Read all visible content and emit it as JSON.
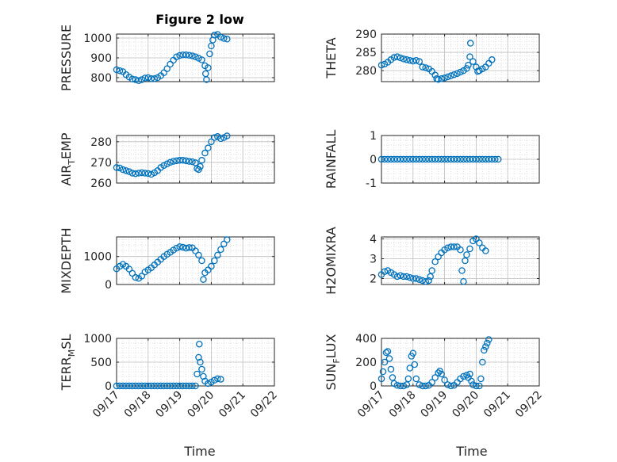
{
  "figure": {
    "title": "Figure 2 low",
    "xlabel": "Time",
    "marker_color": "#0072BD"
  },
  "chart_data": [
    {
      "type": "scatter",
      "ylabel": "PRESSURE",
      "ylim": [
        780,
        1020
      ],
      "yticks": [
        800,
        900,
        1000
      ],
      "xlim": [
        "09/17",
        "09/22"
      ],
      "xticks": [
        "09/17",
        "09/18",
        "09/19",
        "09/20",
        "09/21",
        "09/22"
      ],
      "grid": true,
      "points": [
        [
          0.0,
          840
        ],
        [
          0.1,
          835
        ],
        [
          0.2,
          830
        ],
        [
          0.3,
          815
        ],
        [
          0.4,
          803
        ],
        [
          0.5,
          793
        ],
        [
          0.6,
          790
        ],
        [
          0.7,
          785
        ],
        [
          0.8,
          790
        ],
        [
          0.9,
          798
        ],
        [
          1.0,
          800
        ],
        [
          1.1,
          795
        ],
        [
          1.2,
          795
        ],
        [
          1.3,
          800
        ],
        [
          1.4,
          810
        ],
        [
          1.5,
          825
        ],
        [
          1.6,
          845
        ],
        [
          1.7,
          868
        ],
        [
          1.8,
          888
        ],
        [
          1.9,
          905
        ],
        [
          2.0,
          912
        ],
        [
          2.1,
          915
        ],
        [
          2.2,
          915
        ],
        [
          2.3,
          913
        ],
        [
          2.4,
          910
        ],
        [
          2.5,
          905
        ],
        [
          2.6,
          898
        ],
        [
          2.7,
          890
        ],
        [
          2.8,
          860
        ],
        [
          2.82,
          820
        ],
        [
          2.85,
          790
        ],
        [
          2.9,
          850
        ],
        [
          2.95,
          920
        ],
        [
          3.0,
          960
        ],
        [
          3.05,
          990
        ],
        [
          3.1,
          1015
        ],
        [
          3.2,
          1018
        ],
        [
          3.3,
          1005
        ],
        [
          3.4,
          998
        ],
        [
          3.5,
          995
        ]
      ]
    },
    {
      "type": "scatter",
      "ylabel": "THETA",
      "ylim": [
        277,
        290
      ],
      "yticks": [
        280,
        285,
        290
      ],
      "xlim": [
        "09/17",
        "09/22"
      ],
      "xticks": [
        "09/17",
        "09/18",
        "09/19",
        "09/20",
        "09/21",
        "09/22"
      ],
      "grid": true,
      "points": [
        [
          0.0,
          281.5
        ],
        [
          0.1,
          281.8
        ],
        [
          0.2,
          282.3
        ],
        [
          0.3,
          283.0
        ],
        [
          0.4,
          283.6
        ],
        [
          0.5,
          283.8
        ],
        [
          0.6,
          283.5
        ],
        [
          0.7,
          283.2
        ],
        [
          0.8,
          283.0
        ],
        [
          0.9,
          282.8
        ],
        [
          1.0,
          282.6
        ],
        [
          1.1,
          282.8
        ],
        [
          1.2,
          282.5
        ],
        [
          1.3,
          281.0
        ],
        [
          1.4,
          280.8
        ],
        [
          1.5,
          280.5
        ],
        [
          1.6,
          279.8
        ],
        [
          1.7,
          278.8
        ],
        [
          1.75,
          277.8
        ],
        [
          1.8,
          277.6
        ],
        [
          1.9,
          277.8
        ],
        [
          2.0,
          278.0
        ],
        [
          2.1,
          278.3
        ],
        [
          2.2,
          278.6
        ],
        [
          2.3,
          278.9
        ],
        [
          2.4,
          279.2
        ],
        [
          2.5,
          279.6
        ],
        [
          2.6,
          280.0
        ],
        [
          2.7,
          280.6
        ],
        [
          2.75,
          281.5
        ],
        [
          2.8,
          283.8
        ],
        [
          2.82,
          287.5
        ],
        [
          2.9,
          282.5
        ],
        [
          3.0,
          281.0
        ],
        [
          3.05,
          279.8
        ],
        [
          3.1,
          280.0
        ],
        [
          3.2,
          280.5
        ],
        [
          3.3,
          281.0
        ],
        [
          3.4,
          282.0
        ],
        [
          3.5,
          283.0
        ]
      ]
    },
    {
      "type": "scatter",
      "ylabel": "AIR_TEMP",
      "ylim": [
        260,
        283
      ],
      "yticks": [
        260,
        270,
        280
      ],
      "xlim": [
        "09/17",
        "09/22"
      ],
      "xticks": [
        "09/17",
        "09/18",
        "09/19",
        "09/20",
        "09/21",
        "09/22"
      ],
      "grid": true,
      "points": [
        [
          0.0,
          267.5
        ],
        [
          0.1,
          267.3
        ],
        [
          0.2,
          266.5
        ],
        [
          0.3,
          266.0
        ],
        [
          0.4,
          265.5
        ],
        [
          0.5,
          264.8
        ],
        [
          0.6,
          264.5
        ],
        [
          0.7,
          264.8
        ],
        [
          0.8,
          265.0
        ],
        [
          0.9,
          264.8
        ],
        [
          1.0,
          264.6
        ],
        [
          1.1,
          264.2
        ],
        [
          1.2,
          265.0
        ],
        [
          1.3,
          266.0
        ],
        [
          1.4,
          267.5
        ],
        [
          1.5,
          268.5
        ],
        [
          1.6,
          269.3
        ],
        [
          1.7,
          270.0
        ],
        [
          1.8,
          270.5
        ],
        [
          1.9,
          270.8
        ],
        [
          2.0,
          271.0
        ],
        [
          2.1,
          271.0
        ],
        [
          2.2,
          270.8
        ],
        [
          2.3,
          270.5
        ],
        [
          2.4,
          270.3
        ],
        [
          2.5,
          269.8
        ],
        [
          2.55,
          267.0
        ],
        [
          2.6,
          266.5
        ],
        [
          2.65,
          268.0
        ],
        [
          2.7,
          271.0
        ],
        [
          2.8,
          274.5
        ],
        [
          2.9,
          277.0
        ],
        [
          3.0,
          280.0
        ],
        [
          3.1,
          282.0
        ],
        [
          3.2,
          282.5
        ],
        [
          3.3,
          281.5
        ],
        [
          3.4,
          282.0
        ],
        [
          3.5,
          282.8
        ]
      ]
    },
    {
      "type": "scatter",
      "ylabel": "RAINFALL",
      "ylim": [
        -1,
        1
      ],
      "yticks": [
        -1,
        0,
        1
      ],
      "xlim": [
        "09/17",
        "09/22"
      ],
      "xticks": [
        "09/17",
        "09/18",
        "09/19",
        "09/20",
        "09/21",
        "09/22"
      ],
      "grid": true,
      "points": [
        [
          0.0,
          0
        ],
        [
          0.1,
          0
        ],
        [
          0.2,
          0
        ],
        [
          0.3,
          0
        ],
        [
          0.4,
          0
        ],
        [
          0.5,
          0
        ],
        [
          0.6,
          0
        ],
        [
          0.7,
          0
        ],
        [
          0.8,
          0
        ],
        [
          0.9,
          0
        ],
        [
          1.0,
          0
        ],
        [
          1.1,
          0
        ],
        [
          1.2,
          0
        ],
        [
          1.3,
          0
        ],
        [
          1.4,
          0
        ],
        [
          1.5,
          0
        ],
        [
          1.6,
          0
        ],
        [
          1.7,
          0
        ],
        [
          1.8,
          0
        ],
        [
          1.9,
          0
        ],
        [
          2.0,
          0
        ],
        [
          2.1,
          0
        ],
        [
          2.2,
          0
        ],
        [
          2.3,
          0
        ],
        [
          2.4,
          0
        ],
        [
          2.5,
          0
        ],
        [
          2.6,
          0
        ],
        [
          2.7,
          0
        ],
        [
          2.8,
          0
        ],
        [
          2.9,
          0
        ],
        [
          3.0,
          0
        ],
        [
          3.1,
          0
        ],
        [
          3.2,
          0
        ],
        [
          3.3,
          0
        ],
        [
          3.4,
          0
        ],
        [
          3.5,
          0
        ],
        [
          3.6,
          0
        ],
        [
          3.7,
          0
        ]
      ]
    },
    {
      "type": "scatter",
      "ylabel": "MIXDEPTH",
      "ylim": [
        0,
        1700
      ],
      "yticks": [
        0,
        1000
      ],
      "xlim": [
        "09/17",
        "09/22"
      ],
      "xticks": [
        "09/17",
        "09/18",
        "09/19",
        "09/20",
        "09/21",
        "09/22"
      ],
      "grid": true,
      "points": [
        [
          0.0,
          560
        ],
        [
          0.1,
          650
        ],
        [
          0.2,
          720
        ],
        [
          0.3,
          650
        ],
        [
          0.4,
          550
        ],
        [
          0.5,
          400
        ],
        [
          0.6,
          250
        ],
        [
          0.7,
          220
        ],
        [
          0.8,
          300
        ],
        [
          0.9,
          450
        ],
        [
          1.0,
          520
        ],
        [
          1.1,
          600
        ],
        [
          1.2,
          700
        ],
        [
          1.3,
          800
        ],
        [
          1.4,
          900
        ],
        [
          1.5,
          1000
        ],
        [
          1.6,
          1080
        ],
        [
          1.7,
          1150
        ],
        [
          1.8,
          1230
        ],
        [
          1.9,
          1300
        ],
        [
          2.0,
          1350
        ],
        [
          2.1,
          1330
        ],
        [
          2.2,
          1300
        ],
        [
          2.3,
          1320
        ],
        [
          2.4,
          1310
        ],
        [
          2.5,
          1200
        ],
        [
          2.6,
          1050
        ],
        [
          2.7,
          850
        ],
        [
          2.75,
          180
        ],
        [
          2.8,
          420
        ],
        [
          2.9,
          520
        ],
        [
          3.0,
          650
        ],
        [
          3.1,
          850
        ],
        [
          3.2,
          1050
        ],
        [
          3.3,
          1250
        ],
        [
          3.4,
          1450
        ],
        [
          3.5,
          1600
        ]
      ]
    },
    {
      "type": "scatter",
      "ylabel": "H2OMIXRA",
      "ylim": [
        1.7,
        4.1
      ],
      "yticks": [
        2,
        3,
        4
      ],
      "xlim": [
        "09/17",
        "09/22"
      ],
      "xticks": [
        "09/17",
        "09/18",
        "09/19",
        "09/20",
        "09/21",
        "09/22"
      ],
      "grid": true,
      "points": [
        [
          0.0,
          2.2
        ],
        [
          0.1,
          2.35
        ],
        [
          0.2,
          2.4
        ],
        [
          0.3,
          2.3
        ],
        [
          0.4,
          2.2
        ],
        [
          0.5,
          2.1
        ],
        [
          0.6,
          2.15
        ],
        [
          0.7,
          2.1
        ],
        [
          0.8,
          2.1
        ],
        [
          0.9,
          2.05
        ],
        [
          1.0,
          2.0
        ],
        [
          1.1,
          2.0
        ],
        [
          1.2,
          1.95
        ],
        [
          1.3,
          1.9
        ],
        [
          1.4,
          1.85
        ],
        [
          1.5,
          1.9
        ],
        [
          1.55,
          2.1
        ],
        [
          1.6,
          2.4
        ],
        [
          1.7,
          2.85
        ],
        [
          1.8,
          3.1
        ],
        [
          1.9,
          3.3
        ],
        [
          2.0,
          3.45
        ],
        [
          2.1,
          3.55
        ],
        [
          2.2,
          3.6
        ],
        [
          2.3,
          3.6
        ],
        [
          2.4,
          3.6
        ],
        [
          2.5,
          3.45
        ],
        [
          2.55,
          2.4
        ],
        [
          2.6,
          1.85
        ],
        [
          2.65,
          2.9
        ],
        [
          2.7,
          3.2
        ],
        [
          2.8,
          3.5
        ],
        [
          2.9,
          3.9
        ],
        [
          3.0,
          4.0
        ],
        [
          3.1,
          3.8
        ],
        [
          3.2,
          3.55
        ],
        [
          3.3,
          3.4
        ]
      ]
    },
    {
      "type": "scatter",
      "ylabel": "TERR_MSL",
      "ylim": [
        0,
        1000
      ],
      "yticks": [
        0,
        500,
        1000
      ],
      "xlim": [
        "09/17",
        "09/22"
      ],
      "xticks": [
        "09/17",
        "09/18",
        "09/19",
        "09/20",
        "09/21",
        "09/22"
      ],
      "grid": true,
      "points": [
        [
          0.0,
          0
        ],
        [
          0.1,
          0
        ],
        [
          0.2,
          0
        ],
        [
          0.3,
          0
        ],
        [
          0.4,
          0
        ],
        [
          0.5,
          0
        ],
        [
          0.6,
          0
        ],
        [
          0.7,
          0
        ],
        [
          0.8,
          0
        ],
        [
          0.9,
          0
        ],
        [
          1.0,
          0
        ],
        [
          1.1,
          0
        ],
        [
          1.2,
          0
        ],
        [
          1.3,
          0
        ],
        [
          1.4,
          0
        ],
        [
          1.5,
          0
        ],
        [
          1.6,
          0
        ],
        [
          1.7,
          0
        ],
        [
          1.8,
          0
        ],
        [
          1.9,
          0
        ],
        [
          2.0,
          0
        ],
        [
          2.1,
          0
        ],
        [
          2.2,
          0
        ],
        [
          2.3,
          0
        ],
        [
          2.4,
          0
        ],
        [
          2.5,
          0
        ],
        [
          2.55,
          250
        ],
        [
          2.6,
          600
        ],
        [
          2.62,
          880
        ],
        [
          2.65,
          500
        ],
        [
          2.7,
          350
        ],
        [
          2.75,
          200
        ],
        [
          2.8,
          100
        ],
        [
          2.9,
          50
        ],
        [
          3.0,
          80
        ],
        [
          3.1,
          120
        ],
        [
          3.2,
          150
        ],
        [
          3.3,
          140
        ]
      ]
    },
    {
      "type": "scatter",
      "ylabel": "SUN_FLUX",
      "ylim": [
        0,
        400
      ],
      "yticks": [
        0,
        200,
        400
      ],
      "xlim": [
        "09/17",
        "09/22"
      ],
      "xticks": [
        "09/17",
        "09/18",
        "09/19",
        "09/20",
        "09/21",
        "09/22"
      ],
      "grid": true,
      "points": [
        [
          0.0,
          60
        ],
        [
          0.05,
          120
        ],
        [
          0.1,
          200
        ],
        [
          0.15,
          280
        ],
        [
          0.2,
          290
        ],
        [
          0.25,
          230
        ],
        [
          0.3,
          140
        ],
        [
          0.35,
          70
        ],
        [
          0.4,
          20
        ],
        [
          0.5,
          5
        ],
        [
          0.6,
          0
        ],
        [
          0.7,
          0
        ],
        [
          0.8,
          10
        ],
        [
          0.85,
          60
        ],
        [
          0.9,
          150
        ],
        [
          0.95,
          250
        ],
        [
          1.0,
          275
        ],
        [
          1.05,
          180
        ],
        [
          1.1,
          60
        ],
        [
          1.2,
          10
        ],
        [
          1.3,
          0
        ],
        [
          1.4,
          0
        ],
        [
          1.5,
          5
        ],
        [
          1.6,
          30
        ],
        [
          1.7,
          70
        ],
        [
          1.8,
          110
        ],
        [
          1.85,
          125
        ],
        [
          1.9,
          100
        ],
        [
          2.0,
          50
        ],
        [
          2.1,
          10
        ],
        [
          2.2,
          0
        ],
        [
          2.3,
          5
        ],
        [
          2.4,
          30
        ],
        [
          2.5,
          60
        ],
        [
          2.6,
          80
        ],
        [
          2.7,
          90
        ],
        [
          2.75,
          70
        ],
        [
          2.8,
          100
        ],
        [
          2.85,
          40
        ],
        [
          2.9,
          10
        ],
        [
          3.0,
          0
        ],
        [
          3.1,
          0
        ],
        [
          3.15,
          60
        ],
        [
          3.2,
          200
        ],
        [
          3.25,
          300
        ],
        [
          3.3,
          330
        ],
        [
          3.35,
          360
        ],
        [
          3.4,
          390
        ]
      ]
    }
  ]
}
